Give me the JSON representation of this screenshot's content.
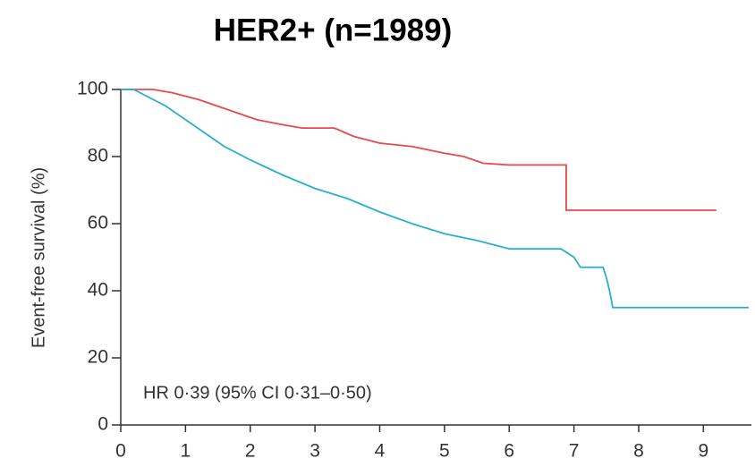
{
  "chart_data": {
    "type": "line",
    "title": "HER2+ (n=1989)",
    "y_label": "Event-free survival (%)",
    "annotation": "HR 0·39 (95% CI 0·31–0·50)",
    "xlim": [
      0,
      9.7
    ],
    "xticks": [
      0,
      1,
      2,
      3,
      4,
      5,
      6,
      7,
      8,
      9
    ],
    "ylim": [
      0,
      100
    ],
    "yticks": [
      0,
      20,
      40,
      60,
      80,
      100
    ],
    "series": [
      {
        "color": "#e8494d",
        "x": [
          0,
          0.5,
          0.8,
          1.2,
          1.5,
          1.8,
          2.1,
          2.5,
          2.8,
          3.3,
          3.6,
          4.0,
          4.5,
          5.0,
          5.3,
          5.6,
          6.0,
          6.88,
          6.88,
          9.2
        ],
        "values": [
          100,
          100,
          99,
          97,
          95,
          93,
          91,
          89.5,
          88.5,
          88.5,
          86,
          84,
          83,
          81,
          80,
          78,
          77.5,
          77.5,
          64,
          64
        ]
      },
      {
        "color": "#2aaed0",
        "x": [
          0,
          0.2,
          0.4,
          0.7,
          1.0,
          1.3,
          1.6,
          2.0,
          2.5,
          3.0,
          3.5,
          4.0,
          4.5,
          5.0,
          5.5,
          6.0,
          6.8,
          7.0,
          7.1,
          7.45,
          7.5,
          7.55,
          7.6,
          9.7
        ],
        "values": [
          100,
          100,
          98,
          95,
          91,
          87,
          83,
          79,
          74.5,
          70.5,
          67.5,
          63.5,
          60,
          57,
          55,
          52.5,
          52.5,
          50,
          47,
          47,
          44,
          40,
          35,
          35
        ]
      }
    ]
  }
}
